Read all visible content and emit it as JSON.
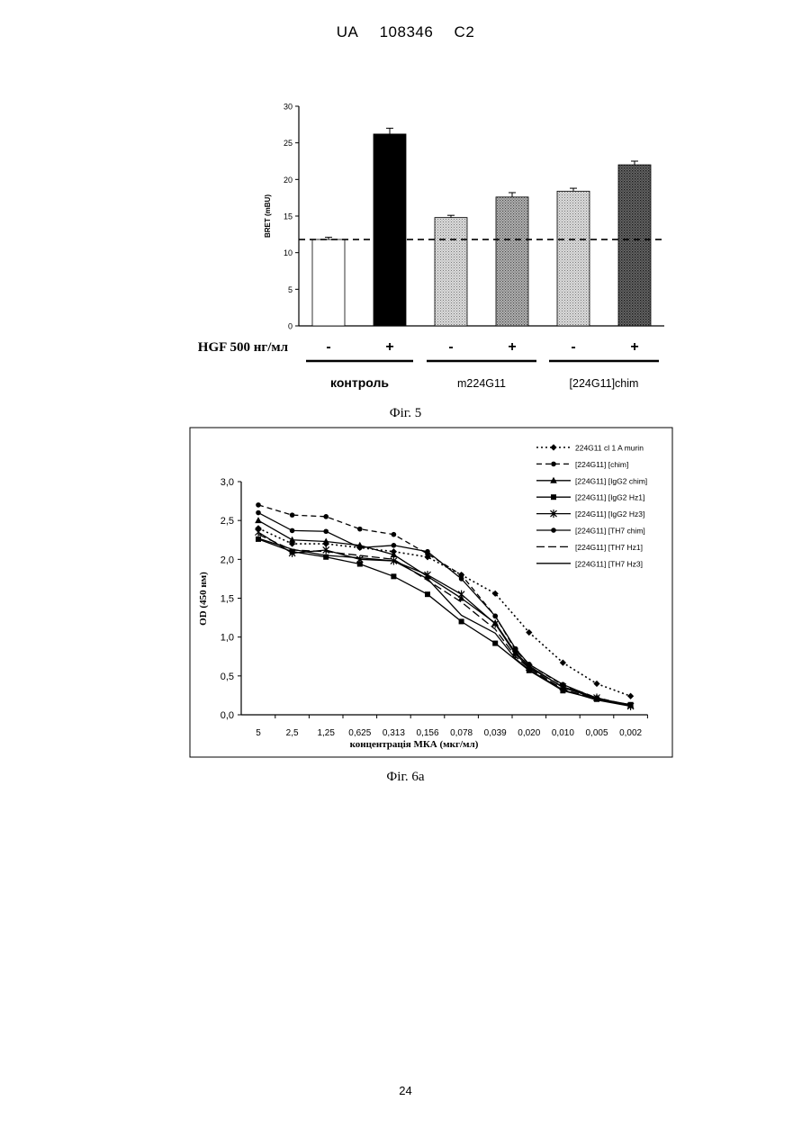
{
  "header": {
    "country": "UA",
    "number": "108346",
    "kind": "C2"
  },
  "fig5": {
    "caption": "Фіг. 5",
    "chart_data": {
      "type": "bar",
      "ylabel": "BRET (mBU)",
      "ylim": [
        0,
        30
      ],
      "yticks": [
        0,
        5,
        10,
        15,
        20,
        25,
        30
      ],
      "reference_line": 11.8,
      "bars": [
        {
          "value": 11.8,
          "error": 0.3,
          "hgf": "-",
          "fill": "white"
        },
        {
          "value": 26.2,
          "error": 0.8,
          "hgf": "+",
          "fill": "black"
        },
        {
          "value": 14.8,
          "error": 0.3,
          "hgf": "-",
          "fill": "light-dots"
        },
        {
          "value": 17.6,
          "error": 0.6,
          "hgf": "+",
          "fill": "mid-dots"
        },
        {
          "value": 18.4,
          "error": 0.4,
          "hgf": "-",
          "fill": "light-dots"
        },
        {
          "value": 22.0,
          "error": 0.5,
          "hgf": "+",
          "fill": "dark-dots"
        }
      ],
      "hgf_label": "HGF 500 нг/мл",
      "groups": [
        {
          "label": "контроль",
          "bars": [
            0,
            1
          ]
        },
        {
          "label": "m224G11",
          "bars": [
            2,
            3
          ]
        },
        {
          "label": "[224G11]chim",
          "bars": [
            4,
            5
          ]
        }
      ]
    }
  },
  "fig6a": {
    "caption": "Фіг. 6а",
    "chart_data": {
      "type": "line",
      "ylabel": "OD (450 нм)",
      "xlabel": "концентрація МКА (мкг/мл)",
      "ylim": [
        0,
        3
      ],
      "yticks": [
        "0,0",
        "0,5",
        "1,0",
        "1,5",
        "2,0",
        "2,5",
        "3,0"
      ],
      "categories": [
        "5",
        "2,5",
        "1,25",
        "0,625",
        "0,313",
        "0,156",
        "0,078",
        "0,039",
        "0,020",
        "0,010",
        "0,005",
        "0,002"
      ],
      "series": [
        {
          "name": "224G11 cl 1 A murin",
          "dash": "dot",
          "marker": "diamond",
          "x": [
            0,
            1,
            2,
            3,
            4,
            5,
            6,
            7,
            8,
            9,
            10,
            11
          ],
          "values": [
            2.4,
            2.2,
            2.2,
            2.15,
            2.1,
            2.03,
            1.8,
            1.56,
            1.06,
            0.67,
            0.4,
            0.24
          ]
        },
        {
          "name": "[224G11] [chim]",
          "dash": "dash",
          "marker": "circle",
          "x": [
            0,
            1,
            2,
            3,
            4,
            5,
            6,
            7,
            7.6,
            8,
            9,
            10,
            11
          ],
          "values": [
            2.7,
            2.57,
            2.55,
            2.39,
            2.32,
            2.07,
            1.8,
            1.27,
            0.83,
            0.65,
            0.38,
            0.22,
            0.12
          ]
        },
        {
          "name": "[224G11] [IgG2 chim]",
          "dash": "solid",
          "marker": "triangle",
          "x": [
            0,
            1,
            2,
            3,
            4,
            5,
            6,
            7,
            7.6,
            8,
            9,
            10,
            11
          ],
          "values": [
            2.5,
            2.25,
            2.23,
            2.18,
            2.06,
            1.78,
            1.5,
            1.18,
            0.8,
            0.63,
            0.35,
            0.21,
            0.12
          ]
        },
        {
          "name": "[224G11] [IgG2 Hz1]",
          "dash": "solid",
          "marker": "square",
          "x": [
            0,
            1,
            2,
            3,
            4,
            5,
            6,
            7,
            8,
            9,
            10,
            11
          ],
          "values": [
            2.26,
            2.1,
            2.03,
            1.94,
            1.78,
            1.55,
            1.2,
            0.92,
            0.57,
            0.31,
            0.2,
            0.13
          ]
        },
        {
          "name": "[224G11] [IgG2 Hz3]",
          "dash": "solid",
          "marker": "star",
          "x": [
            0,
            1,
            2,
            3,
            4,
            5,
            6,
            7,
            7.6,
            8,
            9,
            10,
            11
          ],
          "values": [
            2.35,
            2.08,
            2.12,
            2.0,
            1.98,
            1.8,
            1.55,
            1.17,
            0.78,
            0.61,
            0.36,
            0.22,
            0.11
          ]
        },
        {
          "name": "[224G11] [TH7 chim]",
          "dash": "solid",
          "marker": "circle",
          "x": [
            0,
            1,
            2,
            3,
            4,
            5,
            6,
            7,
            7.6,
            8,
            9,
            10,
            11
          ],
          "values": [
            2.6,
            2.37,
            2.36,
            2.15,
            2.18,
            2.1,
            1.75,
            1.27,
            0.85,
            0.65,
            0.39,
            0.21,
            0.13
          ]
        },
        {
          "name": "[224G11] [TH7 Hz1]",
          "dash": "longdash",
          "marker": "none",
          "x": [
            0,
            1,
            2,
            3,
            4,
            5,
            6,
            7,
            7.6,
            8,
            9,
            10,
            11
          ],
          "values": [
            2.32,
            2.12,
            2.1,
            2.05,
            2.0,
            1.73,
            1.45,
            1.1,
            0.75,
            0.6,
            0.33,
            0.2,
            0.12
          ]
        },
        {
          "name": "[224G11] [TH7 Hz3]",
          "dash": "solid",
          "marker": "none",
          "x": [
            0,
            1,
            2,
            3,
            4,
            5,
            6,
            7,
            7.6,
            8,
            9,
            10,
            11
          ],
          "values": [
            2.27,
            2.13,
            2.05,
            2.02,
            1.98,
            1.75,
            1.28,
            1.05,
            0.72,
            0.58,
            0.32,
            0.19,
            0.11
          ]
        }
      ]
    }
  },
  "page_number": "24"
}
